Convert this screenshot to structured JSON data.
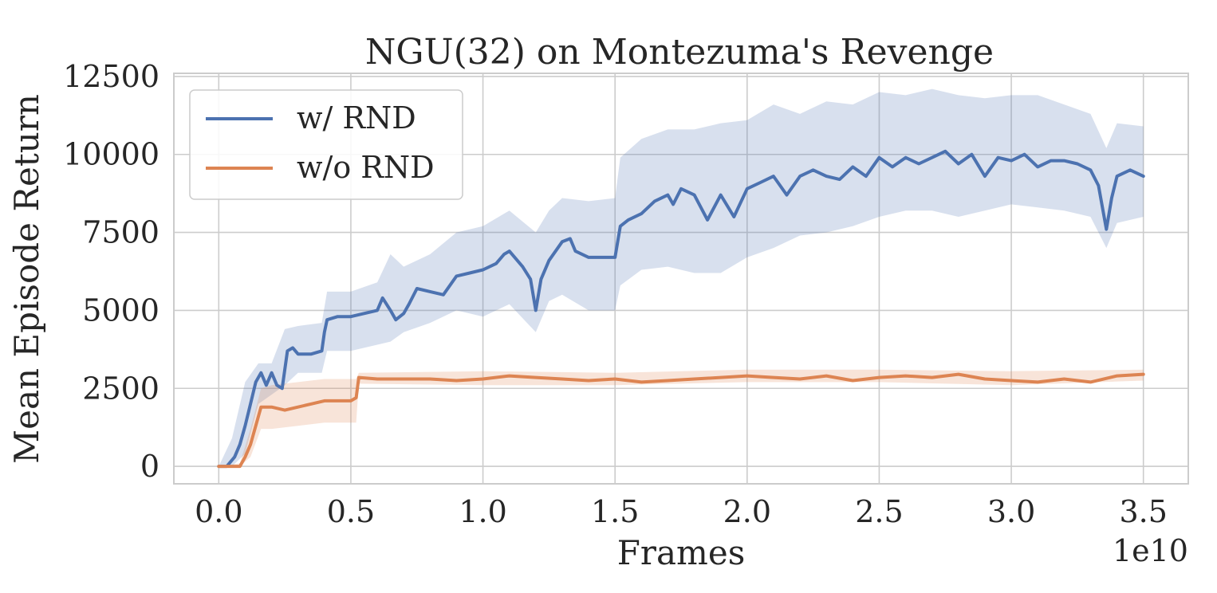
{
  "chart_data": {
    "type": "line",
    "title": "NGU(32) on Montezuma's Revenge",
    "xlabel": "Frames",
    "ylabel": "Mean Episode Return",
    "x_scale_label": "1e10",
    "xlim": [
      -0.17,
      3.67
    ],
    "ylim": [
      -560,
      12600
    ],
    "x_ticks": [
      0.0,
      0.5,
      1.0,
      1.5,
      2.0,
      2.5,
      3.0,
      3.5
    ],
    "x_tick_labels": [
      "0.0",
      "0.5",
      "1.0",
      "1.5",
      "2.0",
      "2.5",
      "3.0",
      "3.5"
    ],
    "y_ticks": [
      0,
      2500,
      5000,
      7500,
      10000,
      12500
    ],
    "y_tick_labels": [
      "0",
      "2500",
      "5000",
      "7500",
      "10000",
      "12500"
    ],
    "grid": true,
    "legend_position": "upper-left",
    "series": [
      {
        "name": "w/ RND",
        "color": "#4c72b0",
        "band_color": "#4c72b0",
        "points": [
          [
            0.0,
            0
          ],
          [
            0.03,
            0
          ],
          [
            0.06,
            300
          ],
          [
            0.08,
            700
          ],
          [
            0.1,
            1300
          ],
          [
            0.12,
            2000
          ],
          [
            0.14,
            2700
          ],
          [
            0.16,
            3000
          ],
          [
            0.18,
            2600
          ],
          [
            0.2,
            3000
          ],
          [
            0.22,
            2600
          ],
          [
            0.24,
            2500
          ],
          [
            0.26,
            3700
          ],
          [
            0.28,
            3800
          ],
          [
            0.3,
            3600
          ],
          [
            0.35,
            3600
          ],
          [
            0.39,
            3700
          ],
          [
            0.4,
            4300
          ],
          [
            0.41,
            4700
          ],
          [
            0.45,
            4800
          ],
          [
            0.5,
            4800
          ],
          [
            0.55,
            4900
          ],
          [
            0.6,
            5000
          ],
          [
            0.62,
            5400
          ],
          [
            0.65,
            5000
          ],
          [
            0.67,
            4700
          ],
          [
            0.7,
            4900
          ],
          [
            0.72,
            5200
          ],
          [
            0.75,
            5700
          ],
          [
            0.8,
            5600
          ],
          [
            0.85,
            5500
          ],
          [
            0.9,
            6100
          ],
          [
            0.95,
            6200
          ],
          [
            1.0,
            6300
          ],
          [
            1.05,
            6500
          ],
          [
            1.08,
            6800
          ],
          [
            1.1,
            6900
          ],
          [
            1.15,
            6400
          ],
          [
            1.18,
            6000
          ],
          [
            1.2,
            5000
          ],
          [
            1.22,
            6000
          ],
          [
            1.25,
            6600
          ],
          [
            1.3,
            7200
          ],
          [
            1.33,
            7300
          ],
          [
            1.35,
            6900
          ],
          [
            1.4,
            6700
          ],
          [
            1.45,
            6700
          ],
          [
            1.5,
            6700
          ],
          [
            1.52,
            7700
          ],
          [
            1.55,
            7900
          ],
          [
            1.6,
            8100
          ],
          [
            1.65,
            8500
          ],
          [
            1.7,
            8700
          ],
          [
            1.72,
            8400
          ],
          [
            1.75,
            8900
          ],
          [
            1.8,
            8700
          ],
          [
            1.85,
            7900
          ],
          [
            1.9,
            8700
          ],
          [
            1.95,
            8000
          ],
          [
            2.0,
            8900
          ],
          [
            2.05,
            9100
          ],
          [
            2.1,
            9300
          ],
          [
            2.15,
            8700
          ],
          [
            2.2,
            9300
          ],
          [
            2.25,
            9500
          ],
          [
            2.3,
            9300
          ],
          [
            2.35,
            9200
          ],
          [
            2.4,
            9600
          ],
          [
            2.45,
            9300
          ],
          [
            2.5,
            9900
          ],
          [
            2.55,
            9600
          ],
          [
            2.6,
            9900
          ],
          [
            2.65,
            9700
          ],
          [
            2.7,
            9900
          ],
          [
            2.75,
            10100
          ],
          [
            2.8,
            9700
          ],
          [
            2.85,
            10000
          ],
          [
            2.9,
            9300
          ],
          [
            2.95,
            9900
          ],
          [
            3.0,
            9800
          ],
          [
            3.05,
            10000
          ],
          [
            3.1,
            9600
          ],
          [
            3.15,
            9800
          ],
          [
            3.2,
            9800
          ],
          [
            3.25,
            9700
          ],
          [
            3.3,
            9500
          ],
          [
            3.33,
            9000
          ],
          [
            3.36,
            7600
          ],
          [
            3.38,
            8600
          ],
          [
            3.4,
            9300
          ],
          [
            3.45,
            9500
          ],
          [
            3.5,
            9300
          ]
        ],
        "band": [
          [
            0.0,
            0,
            0
          ],
          [
            0.05,
            0,
            900
          ],
          [
            0.1,
            400,
            2700
          ],
          [
            0.15,
            2000,
            3300
          ],
          [
            0.2,
            2300,
            3300
          ],
          [
            0.25,
            2600,
            4400
          ],
          [
            0.3,
            3000,
            4500
          ],
          [
            0.39,
            3000,
            4600
          ],
          [
            0.41,
            3700,
            5600
          ],
          [
            0.5,
            3700,
            5600
          ],
          [
            0.6,
            3900,
            5900
          ],
          [
            0.65,
            4000,
            6800
          ],
          [
            0.7,
            4300,
            6400
          ],
          [
            0.8,
            4600,
            6800
          ],
          [
            0.9,
            5000,
            7500
          ],
          [
            1.0,
            4800,
            7700
          ],
          [
            1.1,
            5200,
            8200
          ],
          [
            1.2,
            4300,
            7500
          ],
          [
            1.25,
            5300,
            8200
          ],
          [
            1.3,
            5500,
            8600
          ],
          [
            1.4,
            5000,
            8500
          ],
          [
            1.5,
            5000,
            8600
          ],
          [
            1.52,
            5800,
            9900
          ],
          [
            1.6,
            6300,
            10500
          ],
          [
            1.7,
            6400,
            10800
          ],
          [
            1.8,
            6200,
            10800
          ],
          [
            1.9,
            6200,
            11000
          ],
          [
            2.0,
            6700,
            11100
          ],
          [
            2.1,
            7000,
            11600
          ],
          [
            2.2,
            7400,
            11300
          ],
          [
            2.3,
            7500,
            11700
          ],
          [
            2.4,
            7700,
            11600
          ],
          [
            2.5,
            8000,
            12000
          ],
          [
            2.6,
            8200,
            11900
          ],
          [
            2.7,
            8200,
            12100
          ],
          [
            2.8,
            8000,
            11900
          ],
          [
            2.9,
            8200,
            11800
          ],
          [
            3.0,
            8400,
            11900
          ],
          [
            3.1,
            8300,
            11900
          ],
          [
            3.2,
            8200,
            11600
          ],
          [
            3.3,
            8000,
            11300
          ],
          [
            3.36,
            7000,
            10200
          ],
          [
            3.4,
            7800,
            11000
          ],
          [
            3.5,
            8000,
            10900
          ]
        ]
      },
      {
        "name": "w/o RND",
        "color": "#dd8452",
        "band_color": "#dd8452",
        "points": [
          [
            0.0,
            0
          ],
          [
            0.08,
            0
          ],
          [
            0.1,
            300
          ],
          [
            0.12,
            700
          ],
          [
            0.14,
            1300
          ],
          [
            0.16,
            1900
          ],
          [
            0.2,
            1900
          ],
          [
            0.25,
            1800
          ],
          [
            0.3,
            1900
          ],
          [
            0.35,
            2000
          ],
          [
            0.4,
            2100
          ],
          [
            0.45,
            2100
          ],
          [
            0.5,
            2100
          ],
          [
            0.52,
            2200
          ],
          [
            0.53,
            2850
          ],
          [
            0.6,
            2800
          ],
          [
            0.7,
            2800
          ],
          [
            0.8,
            2800
          ],
          [
            0.9,
            2750
          ],
          [
            1.0,
            2800
          ],
          [
            1.1,
            2900
          ],
          [
            1.2,
            2850
          ],
          [
            1.3,
            2800
          ],
          [
            1.4,
            2750
          ],
          [
            1.5,
            2800
          ],
          [
            1.6,
            2700
          ],
          [
            1.7,
            2750
          ],
          [
            1.8,
            2800
          ],
          [
            1.9,
            2850
          ],
          [
            2.0,
            2900
          ],
          [
            2.1,
            2850
          ],
          [
            2.2,
            2800
          ],
          [
            2.3,
            2900
          ],
          [
            2.4,
            2750
          ],
          [
            2.5,
            2850
          ],
          [
            2.6,
            2900
          ],
          [
            2.7,
            2850
          ],
          [
            2.8,
            2950
          ],
          [
            2.9,
            2800
          ],
          [
            3.0,
            2750
          ],
          [
            3.1,
            2700
          ],
          [
            3.2,
            2800
          ],
          [
            3.3,
            2700
          ],
          [
            3.4,
            2900
          ],
          [
            3.5,
            2950
          ]
        ],
        "band": [
          [
            0.0,
            0,
            0
          ],
          [
            0.08,
            0,
            100
          ],
          [
            0.12,
            300,
            1200
          ],
          [
            0.16,
            1200,
            2500
          ],
          [
            0.2,
            1200,
            2600
          ],
          [
            0.3,
            1300,
            2700
          ],
          [
            0.4,
            1400,
            2800
          ],
          [
            0.52,
            1400,
            2800
          ],
          [
            0.53,
            2650,
            3000
          ],
          [
            1.0,
            2600,
            3050
          ],
          [
            1.5,
            2600,
            3000
          ],
          [
            2.0,
            2700,
            3100
          ],
          [
            2.5,
            2700,
            3100
          ],
          [
            3.0,
            2600,
            3050
          ],
          [
            3.5,
            2750,
            3100
          ]
        ]
      }
    ]
  }
}
